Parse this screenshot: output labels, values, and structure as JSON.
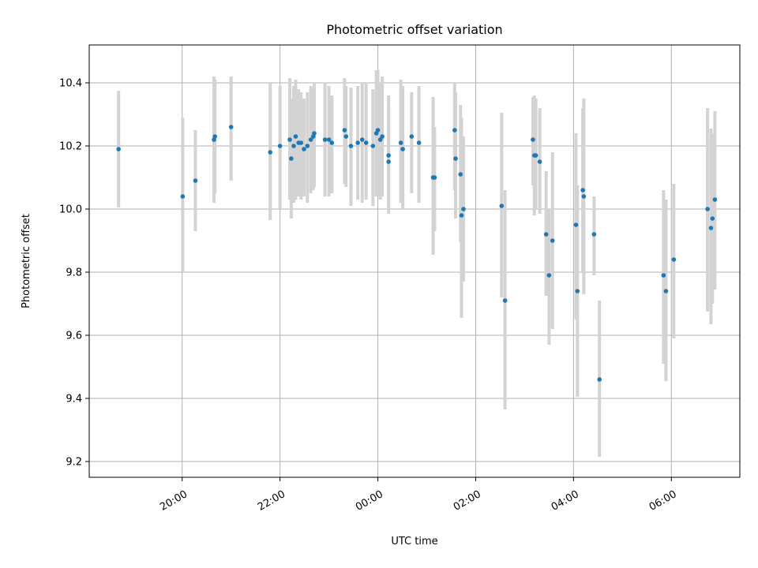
{
  "chart_data": {
    "type": "scatter",
    "title": "Photometric offset variation",
    "xlabel": "UTC time",
    "ylabel": "Photometric offset",
    "x_unit": "hours since 00:00 UTC",
    "xlim": [
      -5.9,
      7.4
    ],
    "ylim": [
      9.15,
      10.52
    ],
    "x_ticks": [
      {
        "value": -4,
        "label": "20:00"
      },
      {
        "value": -2,
        "label": "22:00"
      },
      {
        "value": 0,
        "label": "00:00"
      },
      {
        "value": 2,
        "label": "02:00"
      },
      {
        "value": 4,
        "label": "04:00"
      },
      {
        "value": 6,
        "label": "06:00"
      }
    ],
    "y_ticks": [
      9.2,
      9.4,
      9.6,
      9.8,
      10.0,
      10.2,
      10.4
    ],
    "grid": true,
    "point_color": "#1f77b4",
    "errorbar_color": "#d3d3d3",
    "points": [
      {
        "x": -5.3,
        "y": 10.19,
        "ylo": 10.005,
        "yhi": 10.375
      },
      {
        "x": -3.99,
        "y": 10.04,
        "ylo": 9.8,
        "yhi": 10.29
      },
      {
        "x": -3.73,
        "y": 10.09,
        "ylo": 9.93,
        "yhi": 10.25
      },
      {
        "x": -3.35,
        "y": 10.22,
        "ylo": 10.02,
        "yhi": 10.42
      },
      {
        "x": -3.33,
        "y": 10.23,
        "ylo": 10.05,
        "yhi": 10.41
      },
      {
        "x": -3.0,
        "y": 10.26,
        "ylo": 10.09,
        "yhi": 10.42
      },
      {
        "x": -2.2,
        "y": 10.18,
        "ylo": 9.965,
        "yhi": 10.4
      },
      {
        "x": -2.0,
        "y": 10.2,
        "ylo": 10.0,
        "yhi": 10.39
      },
      {
        "x": -1.8,
        "y": 10.22,
        "ylo": 10.03,
        "yhi": 10.415
      },
      {
        "x": -1.77,
        "y": 10.16,
        "ylo": 9.97,
        "yhi": 10.35
      },
      {
        "x": -1.72,
        "y": 10.2,
        "ylo": 10.02,
        "yhi": 10.39
      },
      {
        "x": -1.68,
        "y": 10.23,
        "ylo": 10.03,
        "yhi": 10.41
      },
      {
        "x": -1.62,
        "y": 10.21,
        "ylo": 10.04,
        "yhi": 10.38
      },
      {
        "x": -1.57,
        "y": 10.21,
        "ylo": 10.03,
        "yhi": 10.37
      },
      {
        "x": -1.51,
        "y": 10.19,
        "ylo": 10.04,
        "yhi": 10.35
      },
      {
        "x": -1.44,
        "y": 10.2,
        "ylo": 10.02,
        "yhi": 10.37
      },
      {
        "x": -1.37,
        "y": 10.22,
        "ylo": 10.05,
        "yhi": 10.39
      },
      {
        "x": -1.32,
        "y": 10.23,
        "ylo": 10.06,
        "yhi": 10.38
      },
      {
        "x": -1.3,
        "y": 10.24,
        "ylo": 10.07,
        "yhi": 10.4
      },
      {
        "x": -1.08,
        "y": 10.22,
        "ylo": 10.04,
        "yhi": 10.4
      },
      {
        "x": -1.0,
        "y": 10.22,
        "ylo": 10.04,
        "yhi": 10.39
      },
      {
        "x": -0.94,
        "y": 10.21,
        "ylo": 10.05,
        "yhi": 10.36
      },
      {
        "x": -0.68,
        "y": 10.25,
        "ylo": 10.08,
        "yhi": 10.415
      },
      {
        "x": -0.65,
        "y": 10.23,
        "ylo": 10.07,
        "yhi": 10.39
      },
      {
        "x": -0.55,
        "y": 10.2,
        "ylo": 10.01,
        "yhi": 10.385
      },
      {
        "x": -0.41,
        "y": 10.21,
        "ylo": 10.03,
        "yhi": 10.39
      },
      {
        "x": -0.32,
        "y": 10.22,
        "ylo": 10.02,
        "yhi": 10.4
      },
      {
        "x": -0.24,
        "y": 10.21,
        "ylo": 10.03,
        "yhi": 10.4
      },
      {
        "x": -0.1,
        "y": 10.2,
        "ylo": 10.01,
        "yhi": 10.38
      },
      {
        "x": -0.03,
        "y": 10.24,
        "ylo": 10.04,
        "yhi": 10.44
      },
      {
        "x": 0.0,
        "y": 10.25,
        "ylo": 10.04,
        "yhi": 10.44
      },
      {
        "x": 0.05,
        "y": 10.22,
        "ylo": 10.03,
        "yhi": 10.4
      },
      {
        "x": 0.09,
        "y": 10.23,
        "ylo": 10.04,
        "yhi": 10.42
      },
      {
        "x": 0.22,
        "y": 10.17,
        "ylo": 9.985,
        "yhi": 10.36
      },
      {
        "x": 0.22,
        "y": 10.15,
        "ylo": 10.0,
        "yhi": 10.33
      },
      {
        "x": 0.47,
        "y": 10.21,
        "ylo": 10.02,
        "yhi": 10.41
      },
      {
        "x": 0.51,
        "y": 10.19,
        "ylo": 10.0,
        "yhi": 10.39
      },
      {
        "x": 0.69,
        "y": 10.23,
        "ylo": 10.05,
        "yhi": 10.37
      },
      {
        "x": 0.84,
        "y": 10.21,
        "ylo": 10.02,
        "yhi": 10.39
      },
      {
        "x": 1.13,
        "y": 10.1,
        "ylo": 9.855,
        "yhi": 10.355
      },
      {
        "x": 1.16,
        "y": 10.1,
        "ylo": 9.93,
        "yhi": 10.26
      },
      {
        "x": 1.57,
        "y": 10.25,
        "ylo": 10.06,
        "yhi": 10.4
      },
      {
        "x": 1.59,
        "y": 10.16,
        "ylo": 9.97,
        "yhi": 10.37
      },
      {
        "x": 1.69,
        "y": 10.11,
        "ylo": 9.895,
        "yhi": 10.33
      },
      {
        "x": 1.71,
        "y": 9.98,
        "ylo": 9.655,
        "yhi": 10.29
      },
      {
        "x": 1.75,
        "y": 10.0,
        "ylo": 9.77,
        "yhi": 10.23
      },
      {
        "x": 2.53,
        "y": 10.01,
        "ylo": 9.72,
        "yhi": 10.305
      },
      {
        "x": 2.6,
        "y": 9.71,
        "ylo": 9.365,
        "yhi": 10.06
      },
      {
        "x": 3.17,
        "y": 10.22,
        "ylo": 10.075,
        "yhi": 10.355
      },
      {
        "x": 3.2,
        "y": 10.17,
        "ylo": 9.98,
        "yhi": 10.36
      },
      {
        "x": 3.23,
        "y": 10.17,
        "ylo": 10.0,
        "yhi": 10.35
      },
      {
        "x": 3.31,
        "y": 10.15,
        "ylo": 9.985,
        "yhi": 10.32
      },
      {
        "x": 3.44,
        "y": 9.92,
        "ylo": 9.725,
        "yhi": 10.12
      },
      {
        "x": 3.5,
        "y": 9.79,
        "ylo": 9.57,
        "yhi": 10.0
      },
      {
        "x": 3.57,
        "y": 9.9,
        "ylo": 9.62,
        "yhi": 10.18
      },
      {
        "x": 4.05,
        "y": 9.95,
        "ylo": 9.65,
        "yhi": 10.24
      },
      {
        "x": 4.08,
        "y": 9.74,
        "ylo": 9.405,
        "yhi": 10.075
      },
      {
        "x": 4.19,
        "y": 10.06,
        "ylo": 9.8,
        "yhi": 10.32
      },
      {
        "x": 4.21,
        "y": 10.04,
        "ylo": 9.73,
        "yhi": 10.35
      },
      {
        "x": 4.42,
        "y": 9.92,
        "ylo": 9.79,
        "yhi": 10.04
      },
      {
        "x": 4.53,
        "y": 9.46,
        "ylo": 9.215,
        "yhi": 9.71
      },
      {
        "x": 5.84,
        "y": 9.79,
        "ylo": 9.51,
        "yhi": 10.06
      },
      {
        "x": 5.89,
        "y": 9.74,
        "ylo": 9.455,
        "yhi": 10.03
      },
      {
        "x": 6.05,
        "y": 9.84,
        "ylo": 9.59,
        "yhi": 10.08
      },
      {
        "x": 6.74,
        "y": 10.0,
        "ylo": 9.675,
        "yhi": 10.32
      },
      {
        "x": 6.81,
        "y": 9.94,
        "ylo": 9.635,
        "yhi": 10.255
      },
      {
        "x": 6.84,
        "y": 9.97,
        "ylo": 9.7,
        "yhi": 10.24
      },
      {
        "x": 6.89,
        "y": 10.03,
        "ylo": 9.745,
        "yhi": 10.31
      }
    ]
  }
}
